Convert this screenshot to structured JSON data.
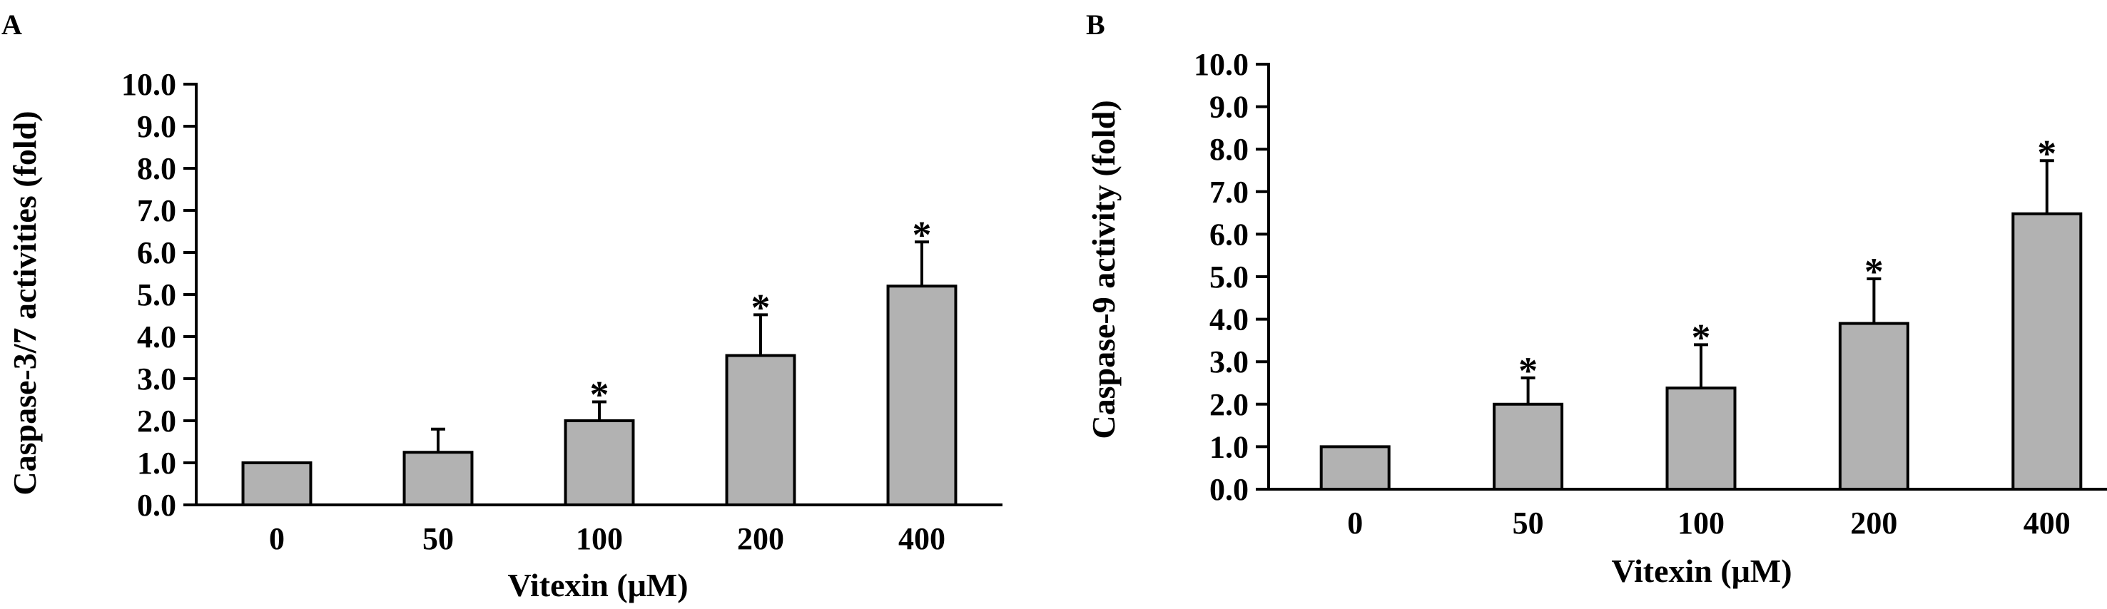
{
  "chart_data": [
    {
      "panel": "A",
      "type": "bar",
      "categories": [
        "0",
        "50",
        "100",
        "200",
        "400"
      ],
      "values": [
        1.0,
        1.25,
        2.0,
        3.55,
        5.2
      ],
      "errors": [
        0.0,
        0.55,
        0.45,
        0.97,
        1.05
      ],
      "significance": [
        "",
        "",
        "*",
        "*",
        "*"
      ],
      "xlabel": "Vitexin (μM)",
      "ylabel": "Caspase-3/7 activities (fold)",
      "ylim": [
        0,
        10
      ],
      "yticks": [
        "0.0",
        "1.0",
        "2.0",
        "3.0",
        "4.0",
        "5.0",
        "6.0",
        "7.0",
        "8.0",
        "9.0",
        "10.0"
      ],
      "bar_color": "#b2b2b2",
      "grid": false
    },
    {
      "panel": "B",
      "type": "bar",
      "categories": [
        "0",
        "50",
        "100",
        "200",
        "400"
      ],
      "values": [
        1.0,
        2.0,
        2.38,
        3.9,
        6.48
      ],
      "errors": [
        0.0,
        0.62,
        1.02,
        1.05,
        1.25
      ],
      "significance": [
        "",
        "*",
        "*",
        "*",
        "*"
      ],
      "xlabel": "Vitexin (μM)",
      "ylabel": "Caspase-9 activity (fold)",
      "ylim": [
        0,
        10
      ],
      "yticks": [
        "0.0",
        "1.0",
        "2.0",
        "3.0",
        "4.0",
        "5.0",
        "6.0",
        "7.0",
        "8.0",
        "9.0",
        "10.0"
      ],
      "bar_color": "#b2b2b2",
      "grid": false
    }
  ]
}
